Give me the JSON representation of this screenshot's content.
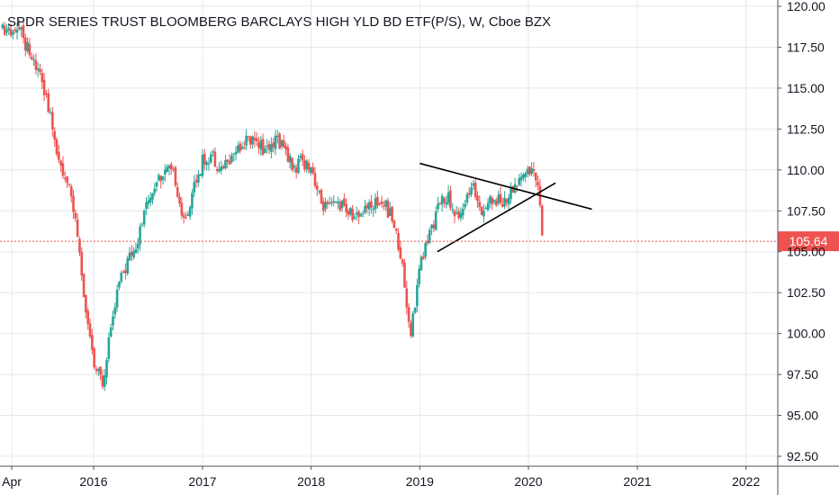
{
  "chart_data": {
    "type": "candlestick",
    "title": "SPDR SERIES TRUST BLOOMBERG BARCLAYS HIGH YLD BD ETF(P/S), W, Cboe BZX",
    "interval": "W",
    "y_ticks": [
      "120.00",
      "117.50",
      "115.00",
      "112.50",
      "110.00",
      "107.50",
      "105.00",
      "102.50",
      "100.00",
      "97.50",
      "95.00",
      "92.50"
    ],
    "ylim": [
      92.5,
      120.0
    ],
    "x_ticks": [
      "Apr",
      "2016",
      "2017",
      "2018",
      "2019",
      "2020",
      "2021",
      "2022"
    ],
    "x_tick_dates": [
      "2015-04",
      "2016-01",
      "2017-01",
      "2018-01",
      "2019-01",
      "2020-01",
      "2021-01",
      "2022-01"
    ],
    "last_price": 105.64,
    "last_price_label": "105.64",
    "anchors": [
      [
        "2015-03",
        118.8
      ],
      [
        "2015-04",
        118.2
      ],
      [
        "2015-05",
        118.5
      ],
      [
        "2015-06",
        117.0
      ],
      [
        "2015-07",
        116.0
      ],
      [
        "2015-08",
        114.0
      ],
      [
        "2015-09",
        111.0
      ],
      [
        "2015-10",
        109.5
      ],
      [
        "2015-11",
        107.0
      ],
      [
        "2015-12",
        102.0
      ],
      [
        "2016-01",
        98.0
      ],
      [
        "2016-02",
        97.0
      ],
      [
        "2016-03",
        101.0
      ],
      [
        "2016-04",
        103.5
      ],
      [
        "2016-05",
        104.5
      ],
      [
        "2016-06",
        106.0
      ],
      [
        "2016-07",
        108.0
      ],
      [
        "2016-08",
        109.5
      ],
      [
        "2016-09",
        110.0
      ],
      [
        "2016-10",
        109.5
      ],
      [
        "2016-11",
        106.5
      ],
      [
        "2016-12",
        109.0
      ],
      [
        "2017-01",
        110.5
      ],
      [
        "2017-02",
        111.0
      ],
      [
        "2017-03",
        110.0
      ],
      [
        "2017-04",
        110.5
      ],
      [
        "2017-05",
        111.5
      ],
      [
        "2017-06",
        111.8
      ],
      [
        "2017-07",
        112.0
      ],
      [
        "2017-08",
        111.0
      ],
      [
        "2017-09",
        112.0
      ],
      [
        "2017-10",
        111.5
      ],
      [
        "2017-11",
        110.0
      ],
      [
        "2017-12",
        110.5
      ],
      [
        "2018-01",
        110.3
      ],
      [
        "2018-02",
        108.0
      ],
      [
        "2018-03",
        107.5
      ],
      [
        "2018-04",
        108.0
      ],
      [
        "2018-05",
        107.5
      ],
      [
        "2018-06",
        107.0
      ],
      [
        "2018-07",
        107.8
      ],
      [
        "2018-08",
        108.0
      ],
      [
        "2018-09",
        108.0
      ],
      [
        "2018-10",
        107.0
      ],
      [
        "2018-11",
        104.5
      ],
      [
        "2018-12",
        100.0
      ],
      [
        "2019-01",
        104.0
      ],
      [
        "2019-02",
        106.0
      ],
      [
        "2019-03",
        107.5
      ],
      [
        "2019-04",
        108.5
      ],
      [
        "2019-05",
        107.0
      ],
      [
        "2019-06",
        108.0
      ],
      [
        "2019-07",
        108.8
      ],
      [
        "2019-08",
        107.5
      ],
      [
        "2019-09",
        108.3
      ],
      [
        "2019-10",
        108.0
      ],
      [
        "2019-11",
        108.5
      ],
      [
        "2019-12",
        109.5
      ],
      [
        "2020-01",
        110.0
      ],
      [
        "2020-02",
        109.5
      ],
      [
        "2020-02-20",
        105.6
      ]
    ],
    "annotations": [
      {
        "type": "trendline",
        "name": "descending-resistance",
        "from": [
          "2019-01",
          110.4
        ],
        "to": [
          "2020-08",
          107.6
        ]
      },
      {
        "type": "trendline",
        "name": "ascending-support",
        "from": [
          "2019-03",
          105.0
        ],
        "to": [
          "2020-04",
          109.2
        ]
      }
    ],
    "colors": {
      "up": "#26a69a",
      "down": "#ef5350",
      "price_line": "#ef5350",
      "text": "#131722",
      "grid": "#e6e8ef"
    },
    "grid": true,
    "legend": "none"
  }
}
